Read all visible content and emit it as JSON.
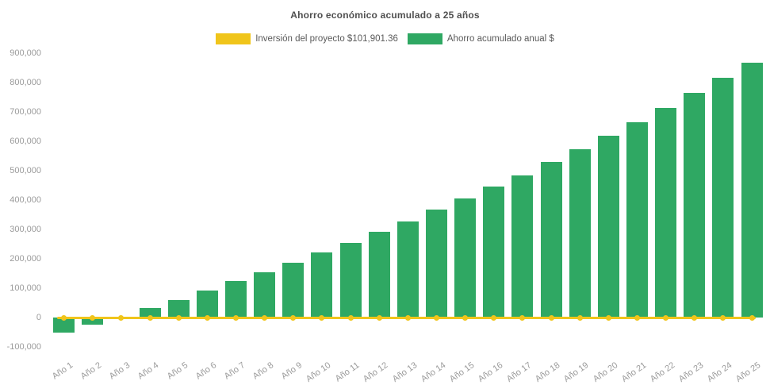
{
  "title": "Ahorro económico acumulado a 25 años",
  "legend": [
    {
      "label": "Inversión del proyecto $101,901.36",
      "color": "#F0C51B"
    },
    {
      "label": "Ahorro acumulado anual $",
      "color": "#2FA863"
    }
  ],
  "colors": {
    "background": "#FFFFFF",
    "bar_green": "#2FA863",
    "line_yellow": "#F0C51B",
    "title_text": "#4F4F4F",
    "legend_text": "#5A5A5A",
    "axis_label_text": "#9B9B9B"
  },
  "chart_data": {
    "type": "bar",
    "title": "Ahorro económico acumulado a 25 años",
    "xlabel": "",
    "ylabel": "",
    "categories": [
      "Año 1",
      "Año 2",
      "Año 3",
      "Año 4",
      "Año 5",
      "Año 6",
      "Año 7",
      "Año 8",
      "Año 9",
      "Año 10",
      "Año 11",
      "Año 12",
      "Año 13",
      "Año 14",
      "Año 15",
      "Año 16",
      "Año 17",
      "Año 18",
      "Año 19",
      "Año 20",
      "Año 21",
      "Año 22",
      "Año 23",
      "Año 24",
      "Año 25"
    ],
    "series": [
      {
        "name": "Inversión del proyecto $101,901.36",
        "type": "line",
        "color": "#F0C51B",
        "values": [
          0,
          0,
          0,
          0,
          0,
          0,
          0,
          0,
          0,
          0,
          0,
          0,
          0,
          0,
          0,
          0,
          0,
          0,
          0,
          0,
          0,
          0,
          0,
          0,
          0
        ]
      },
      {
        "name": "Ahorro acumulado anual $",
        "type": "bar",
        "color": "#2FA863",
        "values": [
          -52000,
          -24000,
          0,
          32000,
          60000,
          92000,
          123000,
          154000,
          186000,
          222000,
          254000,
          293000,
          326000,
          367000,
          405000,
          446000,
          485000,
          530000,
          574000,
          618000,
          666000,
          713000,
          764000,
          815000,
          868000
        ]
      }
    ],
    "ylim": [
      -100000,
      900000
    ],
    "yticks": [
      900000,
      800000,
      700000,
      600000,
      500000,
      400000,
      300000,
      200000,
      100000,
      0,
      -100000
    ],
    "ytick_labels": [
      "900,000",
      "800,000",
      "700,000",
      "600,000",
      "500,000",
      "400,000",
      "300,000",
      "200,000",
      "100,000",
      "0",
      "-100,000"
    ],
    "grid": false,
    "legend_position": "top",
    "x_tick_rotation_deg": -35
  }
}
